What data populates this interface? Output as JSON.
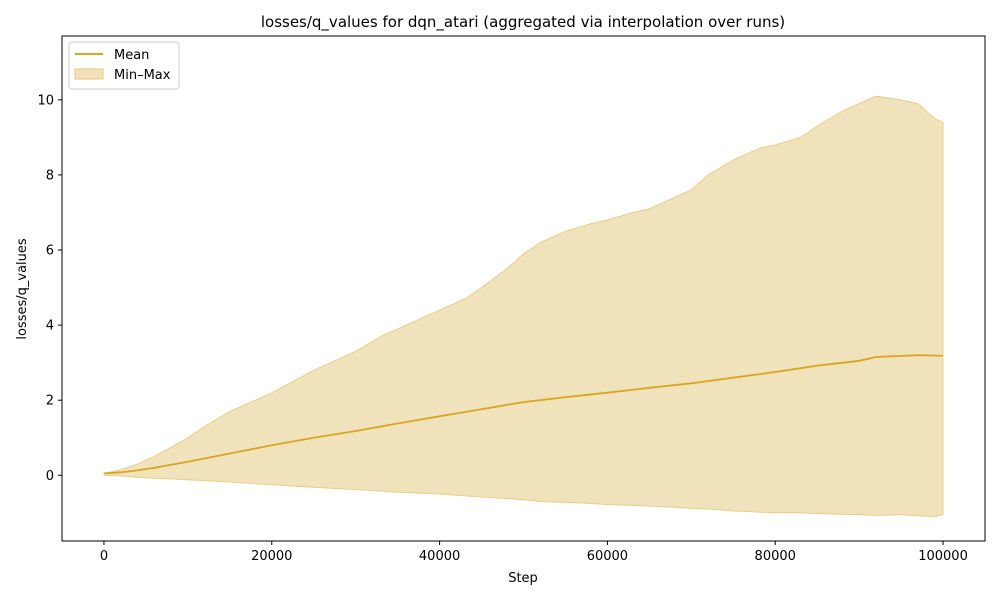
{
  "chart_data": {
    "type": "line",
    "title": "losses/q_values for dqn_atari (aggregated via interpolation over runs)",
    "xlabel": "Step",
    "ylabel": "losses/q_values",
    "xlim": [
      -5000,
      105000
    ],
    "ylim": [
      -1.75,
      11.7
    ],
    "x_ticks": [
      0,
      20000,
      40000,
      60000,
      80000,
      100000
    ],
    "y_ticks": [
      0,
      2,
      4,
      6,
      8,
      10
    ],
    "grid": false,
    "legend_position": "top-left",
    "colors": {
      "mean": "#daa520",
      "band": "#f0e2bb",
      "band_edge": "#e8c77a"
    },
    "series": [
      {
        "name": "Mean",
        "kind": "line",
        "x": [
          0,
          2000,
          4000,
          6000,
          8000,
          10000,
          15000,
          20000,
          25000,
          30000,
          35000,
          40000,
          45000,
          50000,
          55000,
          60000,
          65000,
          70000,
          75000,
          80000,
          85000,
          90000,
          92000,
          95000,
          97000,
          100000
        ],
        "y": [
          0.05,
          0.08,
          0.13,
          0.2,
          0.28,
          0.36,
          0.58,
          0.8,
          1.0,
          1.18,
          1.38,
          1.57,
          1.76,
          1.95,
          2.08,
          2.2,
          2.33,
          2.45,
          2.6,
          2.75,
          2.92,
          3.05,
          3.15,
          3.18,
          3.2,
          3.18
        ]
      },
      {
        "name": "Min–Max",
        "kind": "band",
        "x": [
          0,
          2000,
          4000,
          6000,
          8000,
          10000,
          12000,
          15000,
          20000,
          25000,
          30000,
          33000,
          35000,
          38000,
          40000,
          43000,
          45000,
          48000,
          50000,
          52000,
          55000,
          58000,
          60000,
          63000,
          65000,
          68000,
          70000,
          72000,
          75000,
          78000,
          80000,
          83000,
          85000,
          88000,
          90000,
          92000,
          95000,
          97000,
          99000,
          100000
        ],
        "ymin": [
          0.0,
          -0.02,
          -0.05,
          -0.08,
          -0.1,
          -0.12,
          -0.14,
          -0.18,
          -0.25,
          -0.32,
          -0.38,
          -0.42,
          -0.45,
          -0.48,
          -0.5,
          -0.55,
          -0.58,
          -0.62,
          -0.65,
          -0.7,
          -0.72,
          -0.75,
          -0.78,
          -0.8,
          -0.82,
          -0.85,
          -0.88,
          -0.9,
          -0.95,
          -0.98,
          -1.0,
          -1.0,
          -1.02,
          -1.04,
          -1.05,
          -1.07,
          -1.05,
          -1.08,
          -1.1,
          -1.05
        ],
        "ymax": [
          0.05,
          0.15,
          0.3,
          0.5,
          0.75,
          1.0,
          1.3,
          1.7,
          2.2,
          2.8,
          3.3,
          3.7,
          3.9,
          4.2,
          4.4,
          4.7,
          5.0,
          5.5,
          5.9,
          6.2,
          6.5,
          6.7,
          6.8,
          7.0,
          7.1,
          7.4,
          7.6,
          8.0,
          8.4,
          8.7,
          8.8,
          9.0,
          9.3,
          9.7,
          9.9,
          10.1,
          10.0,
          9.9,
          9.5,
          9.4
        ]
      }
    ]
  }
}
